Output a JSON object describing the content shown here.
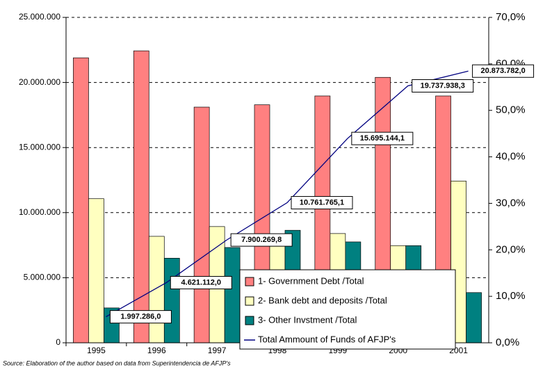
{
  "chart_data": {
    "type": "bar-line",
    "source": "Source: Elaboration of the author based on data from Superintendencia de AFJP's",
    "categories": [
      "1995",
      "1996",
      "1997",
      "1998",
      "1999",
      "2000",
      "2001"
    ],
    "series": [
      {
        "name": "1- Government Debt /Total",
        "color": "#ff8080",
        "axis": "y2",
        "values": [
          61.3,
          62.8,
          50.7,
          51.2,
          53.1,
          57.1,
          53.1
        ]
      },
      {
        "name": "2- Bank debt and deposits /Total",
        "color": "#ffffc0",
        "axis": "y2",
        "values": [
          31.0,
          22.9,
          25.0,
          23.0,
          23.5,
          20.9,
          34.8
        ]
      },
      {
        "name": "3- Other Invstment /Total",
        "color": "#008080",
        "axis": "y2",
        "values": [
          7.5,
          18.2,
          20.5,
          24.2,
          21.7,
          20.9,
          10.8
        ]
      },
      {
        "name": "Total Ammount of Funds of AFJP's",
        "color": "#000080",
        "axis": "y",
        "values": [
          1997286.0,
          4621112.0,
          7900269.8,
          10761765.1,
          15695144.1,
          19737938.3,
          20873782.0
        ],
        "value_labels": [
          "1.997.286,0",
          "4.621.112,0",
          "7.900.269,8",
          "10.761.765,1",
          "15.695.144,1",
          "19.737.938,3",
          "20.873.782,0"
        ]
      }
    ],
    "ylim": [
      0,
      25000000
    ],
    "yticks": [
      0,
      {
        "value": 5000000,
        "label": "5.000.000"
      },
      {
        "value": 10000000,
        "label": "10.000.000"
      },
      {
        "value": 15000000,
        "label": "15.000.000"
      },
      {
        "value": 20000000,
        "label": "20.000.000"
      },
      {
        "value": 25000000,
        "label": "25.000.000"
      }
    ],
    "y2lim": [
      0,
      70
    ],
    "y2ticks": [
      {
        "value": 0,
        "label": "0,0%"
      },
      {
        "value": 10,
        "label": "10,0%"
      },
      {
        "value": 20,
        "label": "20,0%"
      },
      {
        "value": 30,
        "label": "30,0%"
      },
      {
        "value": 40,
        "label": "40,0%"
      },
      {
        "value": 50,
        "label": "50,0%"
      },
      {
        "value": 60,
        "label": "60,0%"
      },
      {
        "value": 70,
        "label": "70,0%"
      }
    ],
    "grid": true
  }
}
